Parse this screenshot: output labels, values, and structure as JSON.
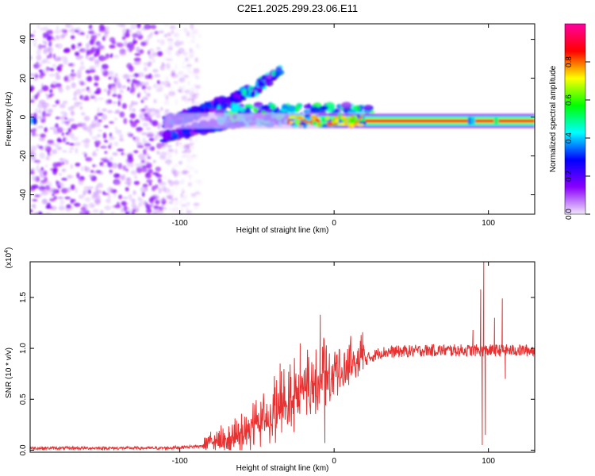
{
  "title": "C2E1.2025.299.23.06.E11",
  "chart_data": [
    {
      "type": "heatmap",
      "name": "spectrogram",
      "xlabel": "Height of straight line (km)",
      "ylabel": "Frequency (Hz)",
      "xlim": [
        -197,
        130
      ],
      "ylim": [
        -50,
        48
      ],
      "xticks": [
        -100,
        0,
        100
      ],
      "yticks": [
        -40,
        -20,
        0,
        20,
        40
      ],
      "colorbar": {
        "label": "Normalized spectral amplitude",
        "range": [
          0,
          1
        ],
        "ticks": [
          0.0,
          0.2,
          0.4,
          0.6,
          0.8
        ],
        "colors": [
          "#f0e8ff",
          "#8a00ff",
          "#0000ff",
          "#00ffff",
          "#00ff00",
          "#ffff00",
          "#ff0000",
          "#ff00a0"
        ]
      },
      "features": {
        "noise_region_x": [
          -197,
          -95
        ],
        "tone_line_x": [
          -110,
          130
        ],
        "tone_line_y": -2,
        "upper_branch": [
          [
            -110,
            -3
          ],
          [
            -90,
            2
          ],
          [
            -70,
            8
          ],
          [
            -50,
            15
          ],
          [
            -35,
            24
          ]
        ],
        "lower_branch": [
          [
            -110,
            -10
          ],
          [
            -90,
            -6
          ],
          [
            -70,
            -3
          ],
          [
            -50,
            0
          ],
          [
            -30,
            2
          ]
        ]
      }
    },
    {
      "type": "line",
      "name": "snr",
      "xlabel": "Height of straight line (km)",
      "ylabel": "SNR (10 * v/v)",
      "yscale_label": "(x10",
      "yscale_exp": "4",
      "xlim": [
        -197,
        130
      ],
      "ylim": [
        -0.02,
        1.85
      ],
      "xticks": [
        -100,
        0,
        100
      ],
      "yticks": [
        0.0,
        0.5,
        1.0,
        1.5
      ],
      "color": "#e83232",
      "envelope": [
        [
          -197,
          0.02
        ],
        [
          -110,
          0.02
        ],
        [
          -85,
          0.04
        ],
        [
          -60,
          0.12
        ],
        [
          -40,
          0.3
        ],
        [
          -20,
          0.55
        ],
        [
          0,
          0.7
        ],
        [
          15,
          0.85
        ],
        [
          30,
          0.96
        ],
        [
          60,
          0.98
        ],
        [
          130,
          0.98
        ]
      ],
      "spikes": [
        [
          -80,
          0.18
        ],
        [
          -35,
          0.85
        ],
        [
          -28,
          0.72
        ],
        [
          -22,
          1.05
        ],
        [
          -9,
          1.33
        ],
        [
          -6,
          0.07
        ],
        [
          -3,
          0.95
        ],
        [
          90,
          1.18
        ],
        [
          95,
          1.58
        ],
        [
          96,
          0.05
        ],
        [
          97,
          1.85
        ],
        [
          98,
          0.15
        ],
        [
          104,
          1.3
        ],
        [
          109,
          1.49
        ],
        [
          111,
          0.7
        ]
      ]
    }
  ]
}
